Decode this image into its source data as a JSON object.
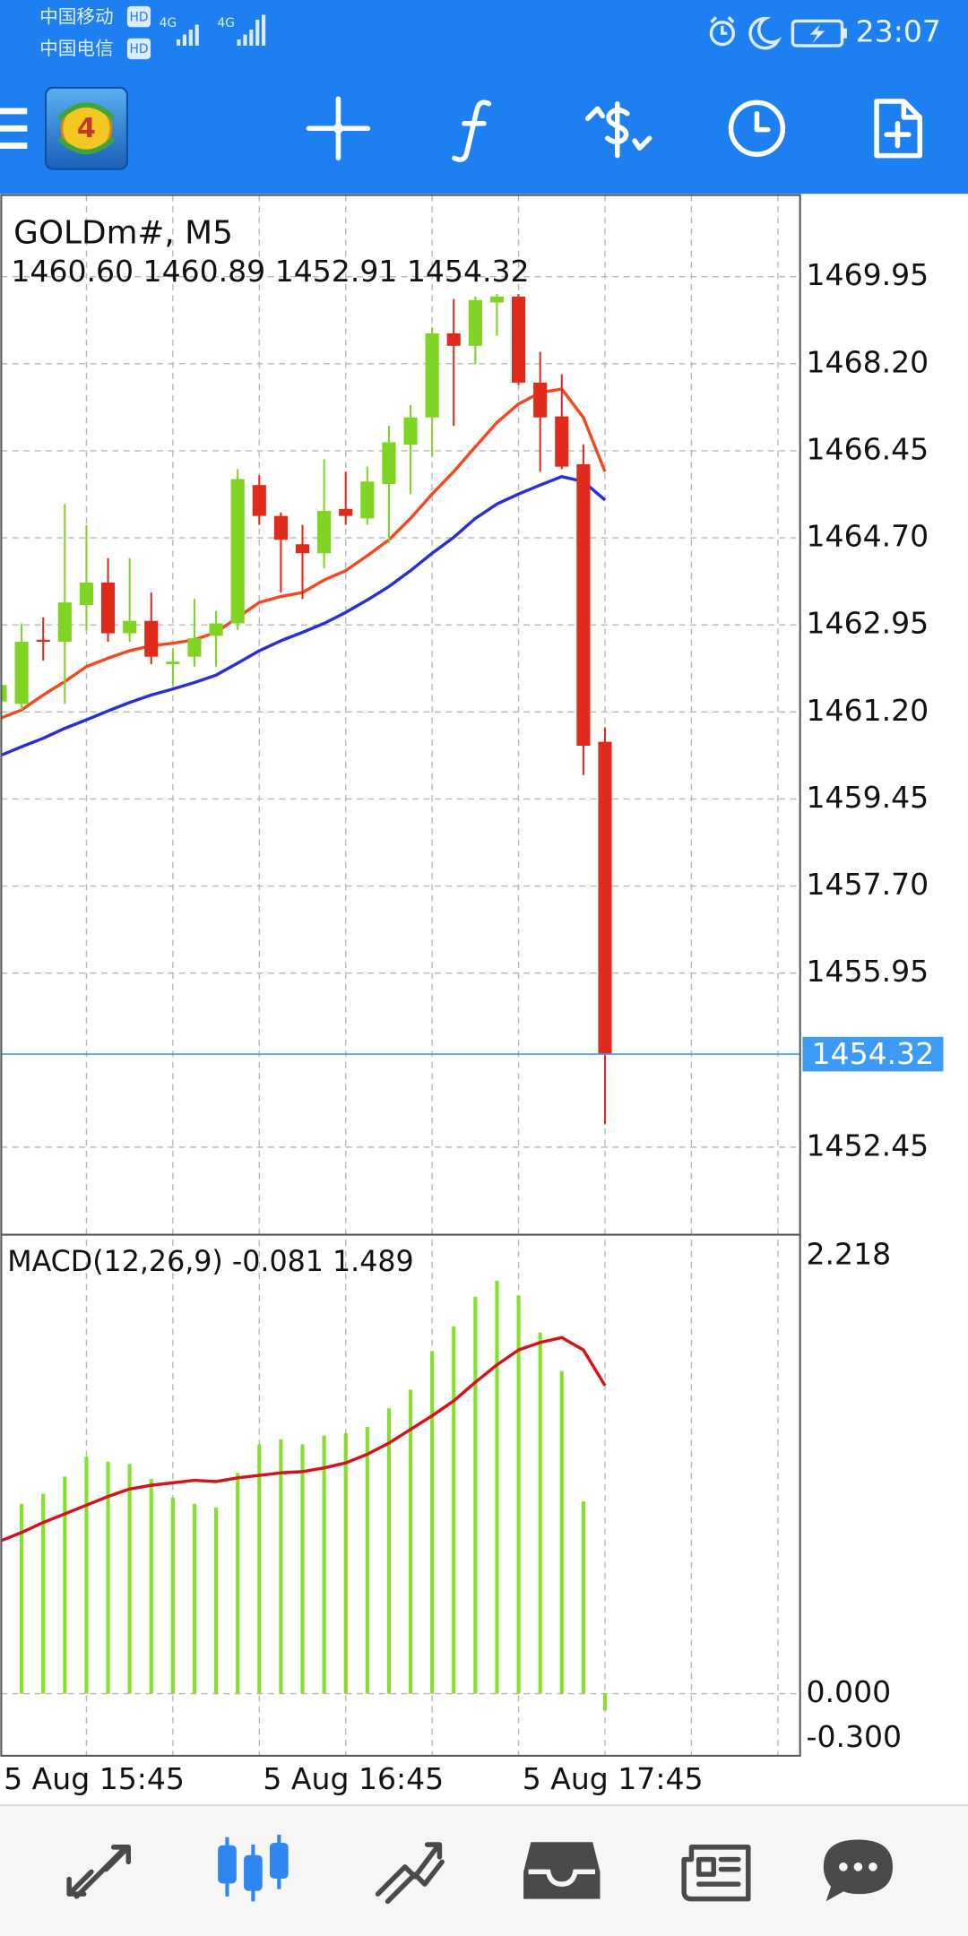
{
  "status_bar": {
    "carrier_1": "中国移动",
    "carrier_2": "中国电信",
    "hd_badge": "HD",
    "network": "4G",
    "time": "23:07"
  },
  "toolbar": {
    "logo_label": "4"
  },
  "chart_data": [
    {
      "type": "candlestick",
      "title": "GOLDm#, M5",
      "subtitle": "1460.60 1460.89 1452.91 1454.32",
      "categories": [
        "5 Aug 15:45",
        null,
        null,
        null,
        null,
        null,
        null,
        null,
        null,
        null,
        null,
        null,
        "5 Aug 16:45",
        null,
        null,
        null,
        null,
        null,
        null,
        null,
        null,
        null,
        null,
        null,
        "5 Aug 17:45",
        null,
        null,
        null,
        null
      ],
      "open": [
        1461.41,
        1461.36,
        1462.65,
        1462.61,
        1463.35,
        1463.8,
        1462.78,
        1463.03,
        1462.16,
        1462.31,
        1462.73,
        1462.98,
        1465.76,
        1465.14,
        1464.57,
        1464.39,
        1465.28,
        1465.09,
        1465.78,
        1466.57,
        1467.12,
        1468.81,
        1468.56,
        1469.43,
        1469.55,
        1467.82,
        1467.14,
        1466.18,
        1460.6
      ],
      "high": [
        1461.9,
        1462.98,
        1463.1,
        1465.38,
        1464.96,
        1464.29,
        1464.29,
        1463.6,
        1462.48,
        1463.47,
        1463.23,
        1466.08,
        1465.96,
        1465.21,
        1464.96,
        1466.28,
        1466.03,
        1466.13,
        1466.95,
        1467.37,
        1468.93,
        1469.5,
        1469.55,
        1469.6,
        1469.6,
        1468.44,
        1467.99,
        1466.58,
        1460.89
      ],
      "low": [
        1461.2,
        1461.24,
        1462.23,
        1461.36,
        1462.85,
        1462.61,
        1462.61,
        1462.16,
        1461.74,
        1462.11,
        1462.11,
        1462.85,
        1464.96,
        1463.6,
        1463.47,
        1464.09,
        1464.96,
        1464.96,
        1464.59,
        1465.58,
        1466.33,
        1466.95,
        1468.19,
        1468.76,
        1467.77,
        1466.03,
        1466.08,
        1459.93,
        1452.91
      ],
      "close": [
        1461.74,
        1462.61,
        1462.61,
        1463.4,
        1463.8,
        1462.78,
        1463.03,
        1462.31,
        1462.21,
        1462.68,
        1462.98,
        1465.88,
        1465.14,
        1464.66,
        1464.39,
        1465.24,
        1465.14,
        1465.83,
        1466.62,
        1467.12,
        1468.81,
        1468.56,
        1469.48,
        1469.55,
        1467.82,
        1467.12,
        1466.13,
        1460.52,
        1454.32
      ],
      "up_color": "#7fd424",
      "down_color": "#e02a1c",
      "overlays": [
        {
          "color": "#f04a23",
          "values": [
            1461.07,
            1461.24,
            1461.54,
            1461.81,
            1462.11,
            1462.28,
            1462.43,
            1462.53,
            1462.58,
            1462.65,
            1462.8,
            1463.1,
            1463.4,
            1463.52,
            1463.6,
            1463.85,
            1464.04,
            1464.34,
            1464.66,
            1465.09,
            1465.58,
            1466.03,
            1466.53,
            1467.02,
            1467.39,
            1467.62,
            1467.69,
            1467.12,
            1466.03
          ]
        },
        {
          "color": "#2a2fd4",
          "values": [
            1460.32,
            1460.5,
            1460.67,
            1460.87,
            1461.04,
            1461.22,
            1461.39,
            1461.54,
            1461.66,
            1461.79,
            1461.94,
            1462.18,
            1462.43,
            1462.63,
            1462.8,
            1462.98,
            1463.2,
            1463.45,
            1463.72,
            1464.04,
            1464.39,
            1464.71,
            1465.09,
            1465.38,
            1465.58,
            1465.76,
            1465.93,
            1465.83,
            1465.46
          ]
        }
      ],
      "price_line": {
        "value": 1454.32,
        "label": "1454.32",
        "color": "#3d9bf5"
      },
      "ylim": [
        1450.69,
        1471.59
      ],
      "yticks": [
        1469.95,
        {
          "value": 1468.2,
          "label": "1468.20"
        },
        1466.45,
        {
          "value": 1464.7,
          "label": "1464.70"
        },
        1462.95,
        {
          "value": 1461.2,
          "label": "1461.20"
        },
        1459.45,
        {
          "value": 1457.7,
          "label": "1457.70"
        },
        1455.95,
        1452.45
      ],
      "grid": true
    },
    {
      "type": "macd",
      "title": "MACD(12,26,9) -0.081 1.489",
      "values": [
        0.857,
        0.917,
        0.965,
        1.049,
        1.145,
        1.121,
        1.109,
        1.037,
        0.947,
        0.917,
        0.899,
        1.067,
        1.205,
        1.229,
        1.205,
        1.247,
        1.259,
        1.289,
        1.379,
        1.469,
        1.655,
        1.775,
        1.918,
        1.996,
        1.924,
        1.745,
        1.559,
        0.929,
        -0.081
      ],
      "color": "#84e02a",
      "signal": {
        "color": "#d4121a",
        "values": [
          0.737,
          0.779,
          0.827,
          0.869,
          0.911,
          0.953,
          0.989,
          1.007,
          1.019,
          1.031,
          1.025,
          1.043,
          1.055,
          1.067,
          1.073,
          1.091,
          1.115,
          1.157,
          1.211,
          1.277,
          1.343,
          1.415,
          1.505,
          1.589,
          1.661,
          1.697,
          1.721,
          1.661,
          1.489
        ]
      },
      "ylim": [
        -0.3,
        2.218
      ],
      "yticks": [
        2.218,
        {
          "value": 0,
          "label": "0.000"
        },
        {
          "value": -0.3,
          "label": "-0.300"
        }
      ],
      "grid": true
    }
  ]
}
